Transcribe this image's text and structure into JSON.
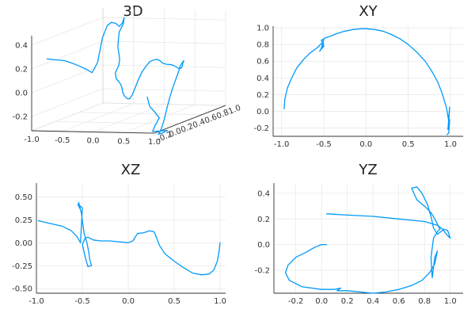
{
  "colors": {
    "series": "#009AFA",
    "grid": "#E6E6E6",
    "axis": "#333333"
  },
  "chart_data": [
    {
      "type": "line",
      "projection": "3d",
      "title": "3D",
      "grid": true,
      "legend": "none",
      "xticks": [
        -1.0,
        -0.5,
        0.0,
        0.5,
        1.0
      ],
      "xtick_labels": [
        "-1.0",
        "-0.5",
        "0.0",
        "0.5",
        "1.0"
      ],
      "ytick_labels": [
        "-0.2",
        "0.0",
        "0.2",
        "0.4",
        "0.6",
        "0.8",
        "1.0"
      ],
      "zticks": [
        -0.2,
        0.0,
        0.2,
        0.4
      ],
      "ztick_labels": [
        "-0.2",
        "0.0",
        "0.2",
        "0.4"
      ],
      "zlim": [
        -0.32,
        0.48
      ]
    },
    {
      "type": "line",
      "title": "XY",
      "grid": true,
      "legend": "none",
      "xlim": [
        -1.1,
        1.15
      ],
      "ylim": [
        -0.3,
        1.02
      ],
      "xticks": [
        -1.0,
        -0.5,
        0.0,
        0.5,
        1.0
      ],
      "xtick_labels": [
        "-1.0",
        "-0.5",
        "0.0",
        "0.5",
        "1.0"
      ],
      "yticks": [
        -0.2,
        0.0,
        0.2,
        0.4,
        0.6,
        0.8,
        1.0
      ],
      "ytick_labels": [
        "-0.2",
        "0.0",
        "0.2",
        "0.4",
        "0.6",
        "0.8",
        "1.0"
      ],
      "x": [
        -0.97,
        -0.96,
        -0.93,
        -0.88,
        -0.82,
        -0.74,
        -0.66,
        -0.58,
        -0.52,
        -0.5,
        -0.53,
        -0.5,
        -0.55,
        -0.5,
        -0.53,
        -0.48,
        -0.42,
        -0.35,
        -0.25,
        -0.15,
        -0.05,
        0.0,
        0.1,
        0.2,
        0.3,
        0.4,
        0.5,
        0.6,
        0.7,
        0.78,
        0.85,
        0.9,
        0.93,
        0.95,
        0.96,
        0.97,
        0.98,
        0.99,
        0.97,
        0.99,
        0.98,
        0.96
      ],
      "y": [
        0.03,
        0.15,
        0.28,
        0.4,
        0.52,
        0.62,
        0.7,
        0.76,
        0.82,
        0.86,
        0.75,
        0.78,
        0.72,
        0.8,
        0.85,
        0.88,
        0.9,
        0.93,
        0.96,
        0.98,
        0.99,
        0.99,
        0.98,
        0.96,
        0.92,
        0.87,
        0.8,
        0.71,
        0.6,
        0.48,
        0.35,
        0.22,
        0.12,
        0.05,
        0.0,
        -0.06,
        -0.12,
        0.05,
        -0.22,
        -0.1,
        -0.26,
        -0.28
      ]
    },
    {
      "type": "line",
      "title": "XZ",
      "grid": true,
      "legend": "none",
      "xlim": [
        -1.0,
        1.06
      ],
      "ylim": [
        -0.55,
        0.65
      ],
      "xticks": [
        -1.0,
        -0.5,
        0.0,
        0.5,
        1.0
      ],
      "xtick_labels": [
        "-1.0",
        "-0.5",
        "0.0",
        "0.5",
        "1.0"
      ],
      "yticks": [
        -0.5,
        -0.25,
        0.0,
        0.25,
        0.5
      ],
      "ytick_labels": [
        "-0.50",
        "-0.25",
        "0.00",
        "0.25",
        "0.50"
      ],
      "x": [
        -0.98,
        -0.85,
        -0.72,
        -0.62,
        -0.56,
        -0.52,
        -0.5,
        -0.55,
        -0.52,
        -0.54,
        -0.51,
        -0.48,
        -0.45,
        -0.43,
        -0.42,
        -0.4,
        -0.44,
        -0.47,
        -0.5,
        -0.47,
        -0.44,
        -0.38,
        -0.3,
        -0.2,
        -0.1,
        0.0,
        0.05,
        0.1,
        0.17,
        0.23,
        0.28,
        0.31,
        0.34,
        0.4,
        0.5,
        0.6,
        0.7,
        0.8,
        0.88,
        0.93,
        0.97,
        0.99,
        1.0
      ],
      "y": [
        0.24,
        0.21,
        0.18,
        0.13,
        0.07,
        0.0,
        0.38,
        0.42,
        0.36,
        0.44,
        0.32,
        0.1,
        0.0,
        -0.1,
        -0.18,
        -0.25,
        -0.26,
        -0.15,
        -0.02,
        0.05,
        0.06,
        0.03,
        0.02,
        0.02,
        0.01,
        0.0,
        0.02,
        0.1,
        0.11,
        0.13,
        0.12,
        0.05,
        -0.03,
        -0.12,
        -0.2,
        -0.27,
        -0.33,
        -0.35,
        -0.34,
        -0.3,
        -0.2,
        -0.08,
        0.0
      ]
    },
    {
      "type": "line",
      "title": "YZ",
      "grid": true,
      "legend": "none",
      "xlim": [
        -0.37,
        1.1
      ],
      "ylim": [
        -0.38,
        0.48
      ],
      "xticks": [
        -0.2,
        0.0,
        0.2,
        0.4,
        0.6,
        0.8,
        1.0
      ],
      "xtick_labels": [
        "-0.2",
        "0.0",
        "0.2",
        "0.4",
        "0.6",
        "0.8",
        "1.0"
      ],
      "yticks": [
        -0.2,
        0.0,
        0.2,
        0.4
      ],
      "ytick_labels": [
        "-0.2",
        "0.0",
        "0.2",
        "0.4"
      ],
      "x": [
        0.04,
        0.0,
        -0.05,
        -0.12,
        -0.2,
        -0.26,
        -0.28,
        -0.25,
        -0.15,
        0.0,
        0.1,
        0.15,
        0.12,
        0.2,
        0.3,
        0.4,
        0.5,
        0.6,
        0.7,
        0.78,
        0.84,
        0.88,
        0.9,
        0.88,
        0.86,
        0.85,
        0.87,
        0.9,
        0.92,
        0.88,
        0.85,
        0.8,
        0.74,
        0.7,
        0.74,
        0.78,
        0.82,
        0.85,
        0.87,
        0.9,
        0.95,
        0.98,
        1.0,
        0.97,
        0.94,
        0.9,
        0.8,
        0.6,
        0.4,
        0.2,
        0.04
      ],
      "y": [
        0.0,
        0.0,
        -0.02,
        -0.06,
        -0.1,
        -0.16,
        -0.22,
        -0.28,
        -0.33,
        -0.35,
        -0.35,
        -0.34,
        -0.36,
        -0.36,
        -0.37,
        -0.38,
        -0.37,
        -0.35,
        -0.32,
        -0.28,
        -0.22,
        -0.15,
        -0.05,
        -0.1,
        -0.26,
        -0.1,
        0.05,
        0.1,
        0.12,
        0.2,
        0.25,
        0.3,
        0.35,
        0.44,
        0.45,
        0.4,
        0.32,
        0.22,
        0.13,
        0.08,
        0.12,
        0.11,
        0.05,
        0.08,
        0.12,
        0.15,
        0.18,
        0.2,
        0.22,
        0.23,
        0.24
      ]
    }
  ]
}
